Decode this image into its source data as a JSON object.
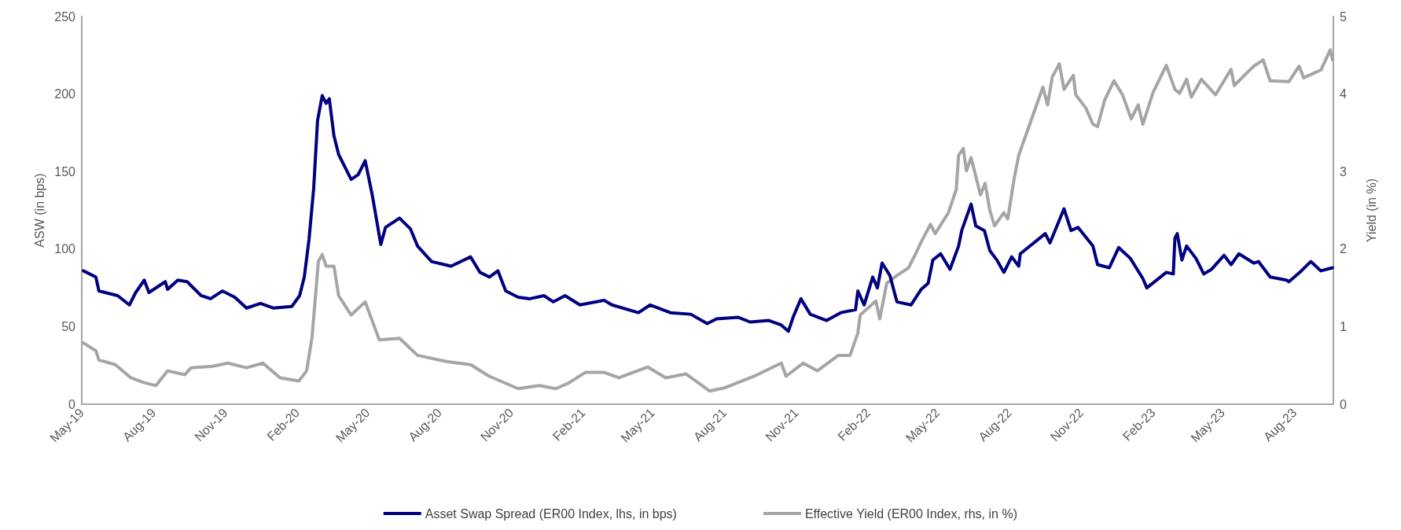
{
  "chart_data": {
    "type": "line",
    "ylabel": "ASW (in bps)",
    "y2label": "Yield (in %)",
    "xlim": [
      "2019-05-01",
      "2023-09-20"
    ],
    "xticks": [
      {
        "value": "2019-05-01",
        "label": "May-19"
      },
      {
        "value": "2019-08-01",
        "label": "Aug-19"
      },
      {
        "value": "2019-11-01",
        "label": "Nov-19"
      },
      {
        "value": "2020-02-01",
        "label": "Feb-20"
      },
      {
        "value": "2020-05-01",
        "label": "May-20"
      },
      {
        "value": "2020-08-01",
        "label": "Aug-20"
      },
      {
        "value": "2020-11-01",
        "label": "Nov-20"
      },
      {
        "value": "2021-02-01",
        "label": "Feb-21"
      },
      {
        "value": "2021-05-01",
        "label": "May-21"
      },
      {
        "value": "2021-08-01",
        "label": "Aug-21"
      },
      {
        "value": "2021-11-01",
        "label": "Nov-21"
      },
      {
        "value": "2022-02-01",
        "label": "Feb-22"
      },
      {
        "value": "2022-05-01",
        "label": "May-22"
      },
      {
        "value": "2022-08-01",
        "label": "Aug-22"
      },
      {
        "value": "2022-11-01",
        "label": "Nov-22"
      },
      {
        "value": "2023-02-01",
        "label": "Feb-23"
      },
      {
        "value": "2023-05-01",
        "label": "May-23"
      },
      {
        "value": "2023-08-01",
        "label": "Aug-23"
      }
    ],
    "ylim": [
      0,
      250
    ],
    "yticks": [
      0,
      50,
      100,
      150,
      200,
      250
    ],
    "y2lim": [
      0,
      5
    ],
    "y2ticks": [
      0,
      1,
      2,
      3,
      4,
      5
    ],
    "grid": false,
    "legend": "bottom",
    "line_style": "solid",
    "series": [
      {
        "name": "Asset Swap Spread (ER00 Index, lhs, in bps)",
        "color": "#000080",
        "x": [
          "2019-05-03",
          "2019-05-19",
          "2019-05-23",
          "2019-06-16",
          "2019-07-01",
          "2019-07-09",
          "2019-07-20",
          "2019-07-26",
          "2019-08-16",
          "2019-08-19",
          "2019-09-01",
          "2019-09-13",
          "2019-10-01",
          "2019-10-13",
          "2019-10-28",
          "2019-11-13",
          "2019-11-28",
          "2019-12-16",
          "2020-01-01",
          "2020-01-25",
          "2020-02-04",
          "2020-02-10",
          "2020-02-16",
          "2020-02-22",
          "2020-02-27",
          "2020-03-04",
          "2020-03-09",
          "2020-03-13",
          "2020-03-19",
          "2020-03-25",
          "2020-04-10",
          "2020-04-19",
          "2020-04-28",
          "2020-05-07",
          "2020-05-18",
          "2020-05-24",
          "2020-06-11",
          "2020-06-25",
          "2020-07-04",
          "2020-07-22",
          "2020-08-16",
          "2020-09-10",
          "2020-09-22",
          "2020-10-04",
          "2020-10-15",
          "2020-10-25",
          "2020-11-10",
          "2020-11-25",
          "2020-12-13",
          "2020-12-25",
          "2021-01-09",
          "2021-01-28",
          "2021-02-28",
          "2021-03-10",
          "2021-04-13",
          "2021-04-28",
          "2021-05-24",
          "2021-06-19",
          "2021-07-10",
          "2021-07-22",
          "2021-08-19",
          "2021-09-03",
          "2021-09-27",
          "2021-10-13",
          "2021-10-22",
          "2021-10-28",
          "2021-11-07",
          "2021-11-19",
          "2021-12-10",
          "2021-12-28",
          "2022-01-16",
          "2022-01-19",
          "2022-01-27",
          "2022-02-07",
          "2022-02-13",
          "2022-02-19",
          "2022-03-01",
          "2022-03-10",
          "2022-03-28",
          "2022-04-10",
          "2022-04-19",
          "2022-04-25",
          "2022-05-05",
          "2022-05-17",
          "2022-05-28",
          "2022-06-01",
          "2022-06-13",
          "2022-06-19",
          "2022-06-30",
          "2022-07-07",
          "2022-07-16",
          "2022-07-25",
          "2022-08-04",
          "2022-08-13",
          "2022-08-15",
          "2022-09-16",
          "2022-09-22",
          "2022-10-01",
          "2022-10-10",
          "2022-10-19",
          "2022-10-28",
          "2022-11-16",
          "2022-11-22",
          "2022-12-07",
          "2022-12-19",
          "2023-01-03",
          "2023-01-19",
          "2023-01-24",
          "2023-02-18",
          "2023-02-27",
          "2023-03-01",
          "2023-03-04",
          "2023-03-10",
          "2023-03-16",
          "2023-03-28",
          "2023-04-07",
          "2023-04-17",
          "2023-05-03",
          "2023-05-12",
          "2023-05-22",
          "2023-06-10",
          "2023-06-16",
          "2023-07-01",
          "2023-07-22",
          "2023-07-25",
          "2023-08-10",
          "2023-08-22",
          "2023-09-04",
          "2023-09-19"
        ],
        "values": [
          86,
          82,
          73,
          70,
          64,
          72,
          80,
          72,
          79,
          74,
          80,
          79,
          70,
          68,
          73,
          69,
          62,
          65,
          62,
          63,
          70,
          82,
          106,
          139,
          183,
          199,
          194,
          197,
          173,
          161,
          145,
          148,
          157,
          135,
          103,
          114,
          120,
          113,
          102,
          92,
          89,
          95,
          85,
          82,
          86,
          73,
          69,
          68,
          70,
          66,
          70,
          64,
          67,
          64,
          59,
          64,
          59,
          58,
          52,
          55,
          56,
          53,
          54,
          51,
          47,
          56,
          68,
          58,
          54,
          59,
          61,
          73,
          64,
          82,
          75,
          91,
          83,
          66,
          64,
          74,
          78,
          93,
          97,
          87,
          102,
          112,
          129,
          115,
          112,
          99,
          93,
          85,
          95,
          89,
          97,
          110,
          104,
          115,
          126,
          112,
          114,
          102,
          90,
          88,
          101,
          94,
          81,
          75,
          85,
          84,
          107,
          110,
          93,
          102,
          94,
          84,
          87,
          96,
          90,
          97,
          91,
          92,
          82,
          80,
          79,
          86,
          92,
          86,
          88
        ]
      },
      {
        "name": "Effective Yield (ER00 Index, rhs, in %)",
        "color": "#a5a5a5",
        "axis": "y2",
        "x": [
          "2019-05-03",
          "2019-05-19",
          "2019-05-23",
          "2019-06-13",
          "2019-07-03",
          "2019-07-19",
          "2019-08-04",
          "2019-08-19",
          "2019-09-10",
          "2019-09-18",
          "2019-10-16",
          "2019-11-04",
          "2019-11-28",
          "2019-12-19",
          "2020-01-10",
          "2020-02-03",
          "2020-02-13",
          "2020-02-20",
          "2020-02-28",
          "2020-03-04",
          "2020-03-09",
          "2020-03-19",
          "2020-03-25",
          "2020-04-10",
          "2020-04-28",
          "2020-05-16",
          "2020-06-11",
          "2020-07-04",
          "2020-08-10",
          "2020-09-10",
          "2020-10-04",
          "2020-11-10",
          "2020-12-07",
          "2020-12-28",
          "2021-01-13",
          "2021-02-04",
          "2021-02-28",
          "2021-03-19",
          "2021-04-25",
          "2021-05-18",
          "2021-06-13",
          "2021-07-13",
          "2021-08-01",
          "2021-09-10",
          "2021-10-13",
          "2021-10-19",
          "2021-11-10",
          "2021-11-28",
          "2021-12-25",
          "2022-01-09",
          "2022-01-19",
          "2022-01-22",
          "2022-02-11",
          "2022-02-16",
          "2022-02-25",
          "2022-03-10",
          "2022-03-25",
          "2022-04-04",
          "2022-04-10",
          "2022-04-22",
          "2022-04-28",
          "2022-05-15",
          "2022-05-25",
          "2022-05-28",
          "2022-06-03",
          "2022-06-07",
          "2022-06-13",
          "2022-06-25",
          "2022-07-01",
          "2022-07-07",
          "2022-07-13",
          "2022-07-25",
          "2022-07-30",
          "2022-08-07",
          "2022-08-13",
          "2022-09-13",
          "2022-09-19",
          "2022-09-25",
          "2022-10-04",
          "2022-10-10",
          "2022-10-22",
          "2022-10-25",
          "2022-11-07",
          "2022-11-16",
          "2022-11-22",
          "2022-12-01",
          "2022-12-13",
          "2022-12-24",
          "2023-01-04",
          "2023-01-13",
          "2023-01-19",
          "2023-02-01",
          "2023-02-18",
          "2023-03-01",
          "2023-03-07",
          "2023-03-16",
          "2023-03-22",
          "2023-04-04",
          "2023-04-22",
          "2023-05-12",
          "2023-05-16",
          "2023-06-10",
          "2023-06-22",
          "2023-07-01",
          "2023-07-25",
          "2023-08-07",
          "2023-08-13",
          "2023-09-04",
          "2023-09-16",
          "2023-09-19"
        ],
        "values": [
          0.79,
          0.69,
          0.57,
          0.51,
          0.34,
          0.28,
          0.24,
          0.43,
          0.38,
          0.47,
          0.49,
          0.53,
          0.47,
          0.53,
          0.34,
          0.3,
          0.43,
          0.87,
          1.84,
          1.93,
          1.78,
          1.78,
          1.4,
          1.15,
          1.32,
          0.83,
          0.85,
          0.63,
          0.55,
          0.51,
          0.36,
          0.2,
          0.24,
          0.2,
          0.27,
          0.41,
          0.41,
          0.34,
          0.48,
          0.34,
          0.39,
          0.17,
          0.21,
          0.37,
          0.53,
          0.36,
          0.53,
          0.43,
          0.63,
          0.63,
          0.92,
          1.15,
          1.33,
          1.1,
          1.56,
          1.66,
          1.76,
          1.96,
          2.09,
          2.32,
          2.2,
          2.47,
          2.77,
          3.21,
          3.3,
          3.01,
          3.18,
          2.7,
          2.85,
          2.5,
          2.3,
          2.47,
          2.39,
          2.9,
          3.21,
          4.09,
          3.86,
          4.22,
          4.39,
          4.06,
          4.24,
          3.99,
          3.82,
          3.61,
          3.58,
          3.92,
          4.17,
          3.99,
          3.68,
          3.86,
          3.61,
          4.02,
          4.37,
          4.06,
          4.01,
          4.19,
          3.96,
          4.19,
          3.99,
          4.32,
          4.11,
          4.36,
          4.44,
          4.17,
          4.16,
          4.36,
          4.21,
          4.31,
          4.57,
          4.44
        ]
      }
    ]
  }
}
